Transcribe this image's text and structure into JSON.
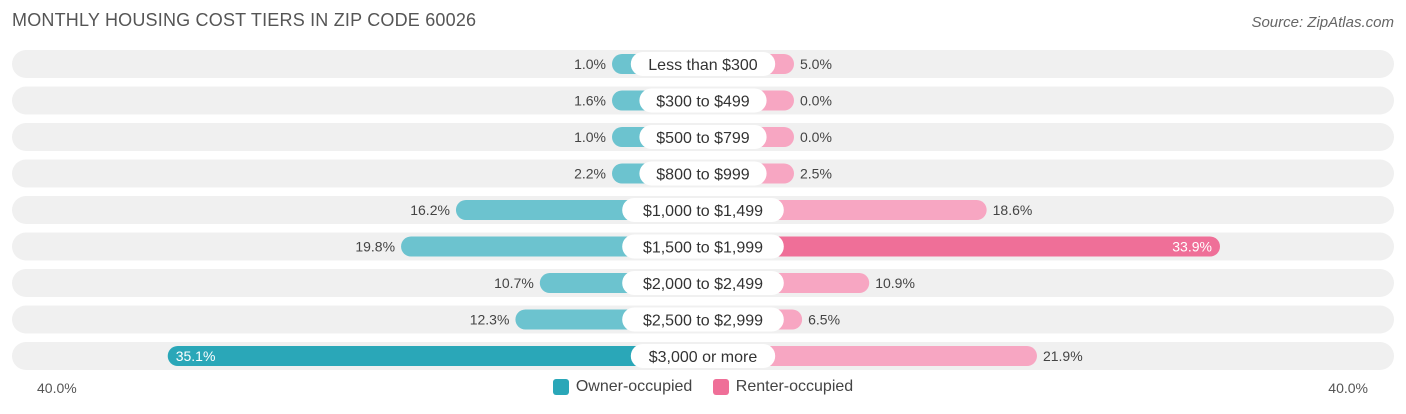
{
  "header": {
    "title": "MONTHLY HOUSING COST TIERS IN ZIP CODE 60026",
    "source": "Source: ZipAtlas.com"
  },
  "colors": {
    "owner": "#6cc3cf",
    "owner_strong": "#2aa7b8",
    "renter": "#f7a6c2",
    "renter_strong": "#ef6f98",
    "row_bg": "#f0f0f0"
  },
  "chart_data": {
    "type": "bar",
    "orientation": "horizontal-diverging",
    "categories": [
      "Less than $300",
      "$300 to $499",
      "$500 to $799",
      "$800 to $999",
      "$1,000 to $1,499",
      "$1,500 to $1,999",
      "$2,000 to $2,499",
      "$2,500 to $2,999",
      "$3,000 or more"
    ],
    "series": [
      {
        "name": "Owner-occupied",
        "values": [
          1.0,
          1.6,
          1.0,
          2.2,
          16.2,
          19.8,
          10.7,
          12.3,
          35.1
        ],
        "labels": [
          "1.0%",
          "1.6%",
          "1.0%",
          "2.2%",
          "16.2%",
          "19.8%",
          "10.7%",
          "12.3%",
          "35.1%"
        ]
      },
      {
        "name": "Renter-occupied",
        "values": [
          5.0,
          0.0,
          0.0,
          2.5,
          18.6,
          33.9,
          10.9,
          6.5,
          21.9
        ],
        "labels": [
          "5.0%",
          "0.0%",
          "0.0%",
          "2.5%",
          "18.6%",
          "33.9%",
          "10.9%",
          "6.5%",
          "21.9%"
        ]
      }
    ],
    "xlim": [
      -40,
      40
    ],
    "axis_left_label": "40.0%",
    "axis_right_label": "40.0%"
  }
}
